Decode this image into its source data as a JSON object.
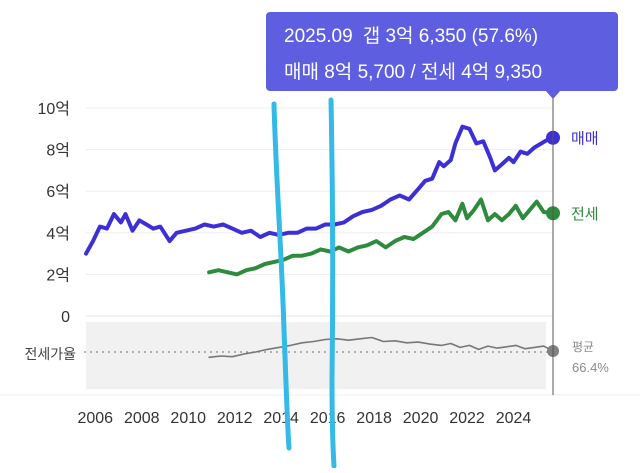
{
  "tooltip": {
    "date": "2025.09",
    "gap_text": "갭 3억 6,350 (57.6%)",
    "sale_text": "매매 8억 5,700",
    "separator": "/",
    "jeonse_text": "전세 4억 9,350"
  },
  "ratio_label": "전세가율",
  "avg_label": "평균",
  "avg_value": "66.4%",
  "colors": {
    "sale": "#3d2fd6",
    "jeonse": "#2e8b3e",
    "ratio": "#777777",
    "tooltip_bg": "#5e5ee0",
    "marker": "#35b9e6"
  },
  "chart_data": {
    "type": "line",
    "x_ticks": [
      "2006",
      "2008",
      "2010",
      "2012",
      "2014",
      "2016",
      "2018",
      "2020",
      "2022",
      "2024"
    ],
    "y_ticks": [
      "10억",
      "8억",
      "6억",
      "4억",
      "2억",
      "0"
    ],
    "ylim": [
      0,
      10
    ],
    "unit": "억",
    "grid": true,
    "legend": "end-of-line labels",
    "cursor_x": 2025.7,
    "series": [
      {
        "name": "매매",
        "color": "#3d2fd6",
        "points": [
          [
            2005.6,
            3.0
          ],
          [
            2005.9,
            3.6
          ],
          [
            2006.2,
            4.3
          ],
          [
            2006.5,
            4.2
          ],
          [
            2006.8,
            4.9
          ],
          [
            2007.1,
            4.5
          ],
          [
            2007.3,
            4.9
          ],
          [
            2007.6,
            4.1
          ],
          [
            2007.9,
            4.6
          ],
          [
            2008.2,
            4.4
          ],
          [
            2008.5,
            4.2
          ],
          [
            2008.8,
            4.3
          ],
          [
            2009.2,
            3.6
          ],
          [
            2009.5,
            4.0
          ],
          [
            2009.9,
            4.1
          ],
          [
            2010.3,
            4.2
          ],
          [
            2010.7,
            4.4
          ],
          [
            2011.1,
            4.3
          ],
          [
            2011.5,
            4.4
          ],
          [
            2011.9,
            4.2
          ],
          [
            2012.3,
            4.0
          ],
          [
            2012.7,
            4.1
          ],
          [
            2013.1,
            3.8
          ],
          [
            2013.5,
            4.0
          ],
          [
            2013.9,
            3.9
          ],
          [
            2014.3,
            4.0
          ],
          [
            2014.7,
            4.0
          ],
          [
            2015.1,
            4.2
          ],
          [
            2015.5,
            4.2
          ],
          [
            2015.9,
            4.4
          ],
          [
            2016.3,
            4.4
          ],
          [
            2016.7,
            4.5
          ],
          [
            2017.1,
            4.8
          ],
          [
            2017.5,
            5.0
          ],
          [
            2017.9,
            5.1
          ],
          [
            2018.3,
            5.3
          ],
          [
            2018.7,
            5.6
          ],
          [
            2019.1,
            5.8
          ],
          [
            2019.5,
            5.6
          ],
          [
            2019.9,
            6.1
          ],
          [
            2020.2,
            6.5
          ],
          [
            2020.5,
            6.6
          ],
          [
            2020.8,
            7.4
          ],
          [
            2021.0,
            7.2
          ],
          [
            2021.3,
            7.5
          ],
          [
            2021.5,
            8.3
          ],
          [
            2021.8,
            9.1
          ],
          [
            2022.1,
            9.0
          ],
          [
            2022.4,
            8.3
          ],
          [
            2022.7,
            8.4
          ],
          [
            2023.0,
            7.6
          ],
          [
            2023.2,
            7.0
          ],
          [
            2023.5,
            7.3
          ],
          [
            2023.8,
            7.6
          ],
          [
            2024.0,
            7.4
          ],
          [
            2024.3,
            7.9
          ],
          [
            2024.6,
            7.8
          ],
          [
            2024.9,
            8.1
          ],
          [
            2025.2,
            8.3
          ],
          [
            2025.5,
            8.5
          ],
          [
            2025.7,
            8.57
          ]
        ]
      },
      {
        "name": "전세",
        "color": "#2e8b3e",
        "points": [
          [
            2010.9,
            2.1
          ],
          [
            2011.3,
            2.2
          ],
          [
            2011.7,
            2.1
          ],
          [
            2012.1,
            2.0
          ],
          [
            2012.5,
            2.2
          ],
          [
            2012.9,
            2.3
          ],
          [
            2013.3,
            2.5
          ],
          [
            2013.7,
            2.6
          ],
          [
            2014.1,
            2.7
          ],
          [
            2014.5,
            2.9
          ],
          [
            2014.9,
            2.9
          ],
          [
            2015.3,
            3.0
          ],
          [
            2015.7,
            3.2
          ],
          [
            2016.1,
            3.1
          ],
          [
            2016.5,
            3.3
          ],
          [
            2016.9,
            3.1
          ],
          [
            2017.3,
            3.3
          ],
          [
            2017.7,
            3.4
          ],
          [
            2018.1,
            3.6
          ],
          [
            2018.5,
            3.3
          ],
          [
            2018.9,
            3.6
          ],
          [
            2019.3,
            3.8
          ],
          [
            2019.7,
            3.7
          ],
          [
            2020.1,
            4.0
          ],
          [
            2020.5,
            4.3
          ],
          [
            2020.9,
            4.9
          ],
          [
            2021.2,
            5.0
          ],
          [
            2021.5,
            4.6
          ],
          [
            2021.8,
            5.4
          ],
          [
            2022.0,
            4.7
          ],
          [
            2022.3,
            5.1
          ],
          [
            2022.6,
            5.6
          ],
          [
            2022.9,
            4.6
          ],
          [
            2023.2,
            4.9
          ],
          [
            2023.5,
            4.6
          ],
          [
            2023.8,
            4.9
          ],
          [
            2024.1,
            5.3
          ],
          [
            2024.4,
            4.7
          ],
          [
            2024.7,
            5.1
          ],
          [
            2025.0,
            5.5
          ],
          [
            2025.3,
            5.0
          ],
          [
            2025.7,
            4.94
          ]
        ]
      },
      {
        "name": "전세가율",
        "color": "#777777",
        "points": [
          [
            2010.9,
            48
          ],
          [
            2011.4,
            50
          ],
          [
            2011.9,
            49
          ],
          [
            2012.4,
            53
          ],
          [
            2012.9,
            56
          ],
          [
            2013.4,
            60
          ],
          [
            2013.9,
            63
          ],
          [
            2014.4,
            66
          ],
          [
            2014.9,
            70
          ],
          [
            2015.4,
            72
          ],
          [
            2015.9,
            75
          ],
          [
            2016.4,
            76
          ],
          [
            2016.9,
            74
          ],
          [
            2017.4,
            76
          ],
          [
            2017.9,
            78
          ],
          [
            2018.4,
            72
          ],
          [
            2018.9,
            73
          ],
          [
            2019.4,
            70
          ],
          [
            2019.9,
            71
          ],
          [
            2020.4,
            68
          ],
          [
            2020.9,
            66
          ],
          [
            2021.3,
            69
          ],
          [
            2021.7,
            63
          ],
          [
            2022.1,
            66
          ],
          [
            2022.5,
            60
          ],
          [
            2022.9,
            65
          ],
          [
            2023.3,
            62
          ],
          [
            2023.7,
            64
          ],
          [
            2024.1,
            66
          ],
          [
            2024.5,
            61
          ],
          [
            2024.9,
            63
          ],
          [
            2025.3,
            65
          ],
          [
            2025.7,
            57.6
          ]
        ]
      }
    ]
  }
}
